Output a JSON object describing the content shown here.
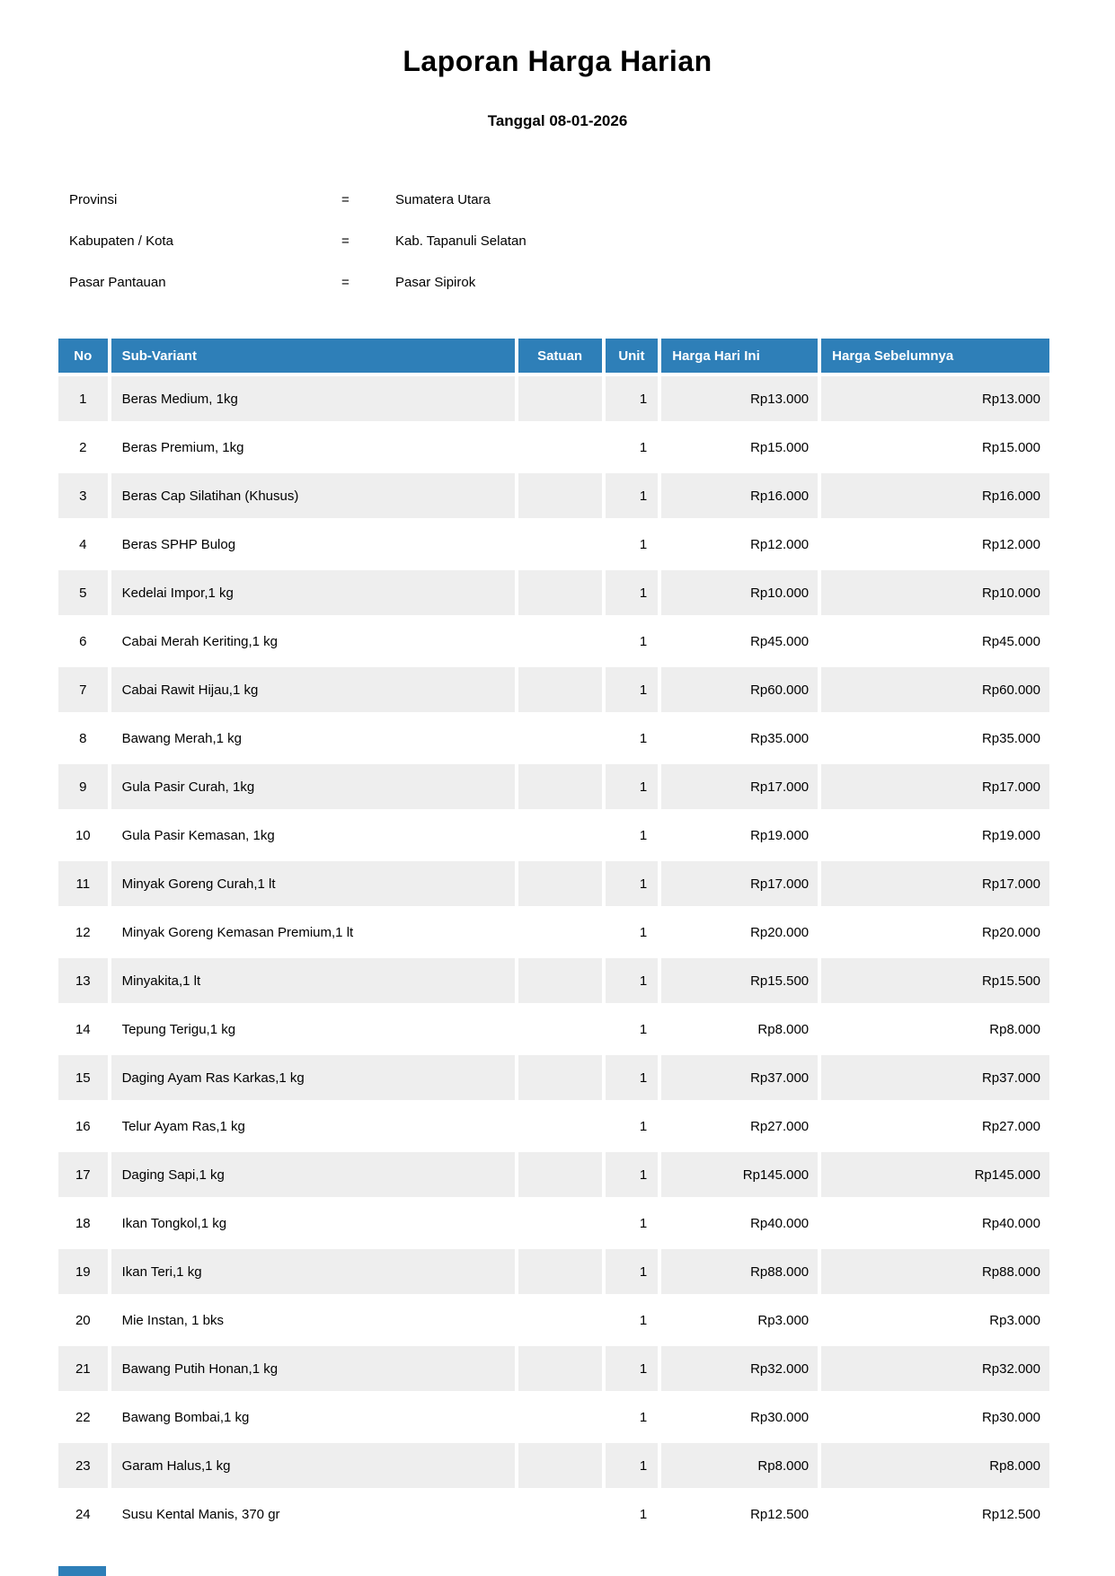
{
  "document": {
    "title": "Laporan Harga Harian",
    "subtitle": "Tanggal 08-01-2026",
    "meta": [
      {
        "label": "Provinsi",
        "separator": "=",
        "value": "Sumatera Utara"
      },
      {
        "label": "Kabupaten / Kota",
        "separator": "=",
        "value": "Kab. Tapanuli Selatan"
      },
      {
        "label": "Pasar Pantauan",
        "separator": "=",
        "value": "Pasar Sipirok"
      }
    ]
  },
  "table": {
    "headers": [
      "No",
      "Sub-Variant",
      "Satuan",
      "Unit",
      "Harga Hari Ini",
      "Harga Sebelumnya"
    ],
    "rows": [
      {
        "no": "1",
        "sub_variant": "Beras Medium, 1kg",
        "satuan": "",
        "unit": "1",
        "harga_hari_ini": "Rp13.000",
        "harga_sebelumnya": "Rp13.000"
      },
      {
        "no": "2",
        "sub_variant": "Beras Premium, 1kg",
        "satuan": "",
        "unit": "1",
        "harga_hari_ini": "Rp15.000",
        "harga_sebelumnya": "Rp15.000"
      },
      {
        "no": "3",
        "sub_variant": "Beras Cap Silatihan (Khusus)",
        "satuan": "",
        "unit": "1",
        "harga_hari_ini": "Rp16.000",
        "harga_sebelumnya": "Rp16.000"
      },
      {
        "no": "4",
        "sub_variant": "Beras SPHP Bulog",
        "satuan": "",
        "unit": "1",
        "harga_hari_ini": "Rp12.000",
        "harga_sebelumnya": "Rp12.000"
      },
      {
        "no": "5",
        "sub_variant": "Kedelai Impor,1 kg",
        "satuan": "",
        "unit": "1",
        "harga_hari_ini": "Rp10.000",
        "harga_sebelumnya": "Rp10.000"
      },
      {
        "no": "6",
        "sub_variant": "Cabai Merah Keriting,1 kg",
        "satuan": "",
        "unit": "1",
        "harga_hari_ini": "Rp45.000",
        "harga_sebelumnya": "Rp45.000"
      },
      {
        "no": "7",
        "sub_variant": "Cabai Rawit Hijau,1 kg",
        "satuan": "",
        "unit": "1",
        "harga_hari_ini": "Rp60.000",
        "harga_sebelumnya": "Rp60.000"
      },
      {
        "no": "8",
        "sub_variant": "Bawang Merah,1 kg",
        "satuan": "",
        "unit": "1",
        "harga_hari_ini": "Rp35.000",
        "harga_sebelumnya": "Rp35.000"
      },
      {
        "no": "9",
        "sub_variant": "Gula Pasir Curah, 1kg",
        "satuan": "",
        "unit": "1",
        "harga_hari_ini": "Rp17.000",
        "harga_sebelumnya": "Rp17.000"
      },
      {
        "no": "10",
        "sub_variant": "Gula Pasir Kemasan, 1kg",
        "satuan": "",
        "unit": "1",
        "harga_hari_ini": "Rp19.000",
        "harga_sebelumnya": "Rp19.000"
      },
      {
        "no": "11",
        "sub_variant": "Minyak Goreng Curah,1 lt",
        "satuan": "",
        "unit": "1",
        "harga_hari_ini": "Rp17.000",
        "harga_sebelumnya": "Rp17.000"
      },
      {
        "no": "12",
        "sub_variant": "Minyak Goreng Kemasan Premium,1 lt",
        "satuan": "",
        "unit": "1",
        "harga_hari_ini": "Rp20.000",
        "harga_sebelumnya": "Rp20.000"
      },
      {
        "no": "13",
        "sub_variant": "Minyakita,1 lt",
        "satuan": "",
        "unit": "1",
        "harga_hari_ini": "Rp15.500",
        "harga_sebelumnya": "Rp15.500"
      },
      {
        "no": "14",
        "sub_variant": "Tepung Terigu,1 kg",
        "satuan": "",
        "unit": "1",
        "harga_hari_ini": "Rp8.000",
        "harga_sebelumnya": "Rp8.000"
      },
      {
        "no": "15",
        "sub_variant": "Daging Ayam Ras Karkas,1 kg",
        "satuan": "",
        "unit": "1",
        "harga_hari_ini": "Rp37.000",
        "harga_sebelumnya": "Rp37.000"
      },
      {
        "no": "16",
        "sub_variant": "Telur Ayam Ras,1 kg",
        "satuan": "",
        "unit": "1",
        "harga_hari_ini": "Rp27.000",
        "harga_sebelumnya": "Rp27.000"
      },
      {
        "no": "17",
        "sub_variant": "Daging Sapi,1 kg",
        "satuan": "",
        "unit": "1",
        "harga_hari_ini": "Rp145.000",
        "harga_sebelumnya": "Rp145.000"
      },
      {
        "no": "18",
        "sub_variant": "Ikan Tongkol,1 kg",
        "satuan": "",
        "unit": "1",
        "harga_hari_ini": "Rp40.000",
        "harga_sebelumnya": "Rp40.000"
      },
      {
        "no": "19",
        "sub_variant": "Ikan Teri,1 kg",
        "satuan": "",
        "unit": "1",
        "harga_hari_ini": "Rp88.000",
        "harga_sebelumnya": "Rp88.000"
      },
      {
        "no": "20",
        "sub_variant": "Mie Instan, 1 bks",
        "satuan": "",
        "unit": "1",
        "harga_hari_ini": "Rp3.000",
        "harga_sebelumnya": "Rp3.000"
      },
      {
        "no": "21",
        "sub_variant": "Bawang Putih Honan,1 kg",
        "satuan": "",
        "unit": "1",
        "harga_hari_ini": "Rp32.000",
        "harga_sebelumnya": "Rp32.000"
      },
      {
        "no": "22",
        "sub_variant": "Bawang Bombai,1 kg",
        "satuan": "",
        "unit": "1",
        "harga_hari_ini": "Rp30.000",
        "harga_sebelumnya": "Rp30.000"
      },
      {
        "no": "23",
        "sub_variant": "Garam Halus,1 kg",
        "satuan": "",
        "unit": "1",
        "harga_hari_ini": "Rp8.000",
        "harga_sebelumnya": "Rp8.000"
      },
      {
        "no": "24",
        "sub_variant": "Susu Kental Manis, 370 gr",
        "satuan": "",
        "unit": "1",
        "harga_hari_ini": "Rp12.500",
        "harga_sebelumnya": "Rp12.500"
      }
    ]
  },
  "colors": {
    "header_bg": "#2e7fb8",
    "row_alt_bg": "#eeeeee",
    "header_text": "#ffffff",
    "body_text": "#000000"
  }
}
